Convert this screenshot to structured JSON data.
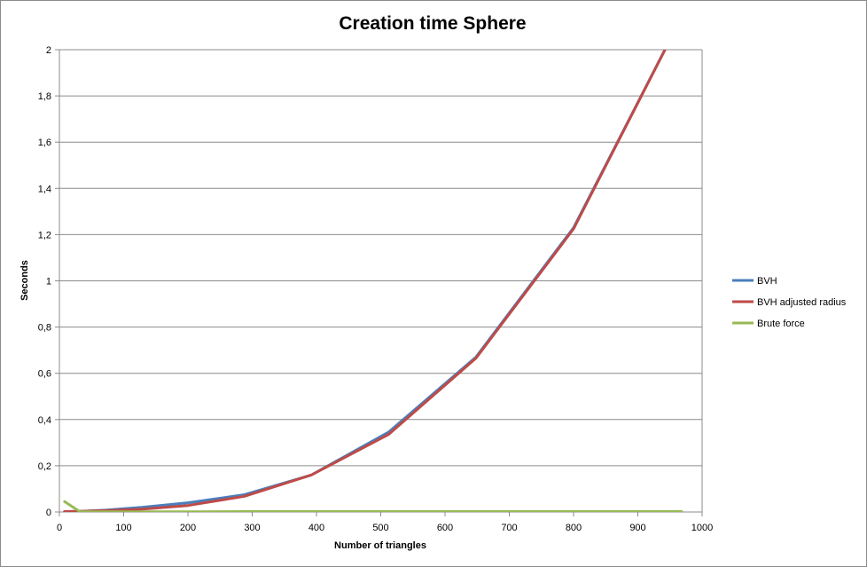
{
  "chart_data": {
    "type": "line",
    "title": "Creation time Sphere",
    "xlabel": "Number of triangles",
    "ylabel": "Seconds",
    "xlim": [
      0,
      1000
    ],
    "ylim": [
      0,
      2
    ],
    "x_ticks": [
      "0",
      "100",
      "200",
      "300",
      "400",
      "500",
      "600",
      "700",
      "800",
      "900",
      "1000"
    ],
    "y_ticks": [
      "0",
      "0,2",
      "0,4",
      "0,6",
      "0,8",
      "1",
      "1,2",
      "1,4",
      "1,6",
      "1,8",
      "2"
    ],
    "grid": "horizontal",
    "legend_position": "right",
    "series": [
      {
        "name": "BVH",
        "color": "#4a7ebb",
        "x": [
          8,
          32,
          72,
          128,
          200,
          288,
          392,
          512,
          648,
          800,
          968
        ],
        "y": [
          0.002,
          0.003,
          0.008,
          0.02,
          0.04,
          0.075,
          0.16,
          0.345,
          0.67,
          1.23,
          2.14
        ]
      },
      {
        "name": "BVH adjusted radius",
        "color": "#be4b48",
        "x": [
          8,
          32,
          72,
          128,
          200,
          288,
          392,
          512,
          648,
          800,
          968
        ],
        "y": [
          0.002,
          0.003,
          0.006,
          0.012,
          0.028,
          0.068,
          0.16,
          0.335,
          0.665,
          1.225,
          2.14
        ]
      },
      {
        "name": "Brute force",
        "color": "#98b954",
        "x": [
          8,
          32,
          72,
          128,
          200,
          288,
          392,
          512,
          648,
          800,
          968
        ],
        "y": [
          0.045,
          0.001,
          0.001,
          0.001,
          0.001,
          0.002,
          0.002,
          0.002,
          0.002,
          0.002,
          0.002
        ]
      }
    ]
  }
}
